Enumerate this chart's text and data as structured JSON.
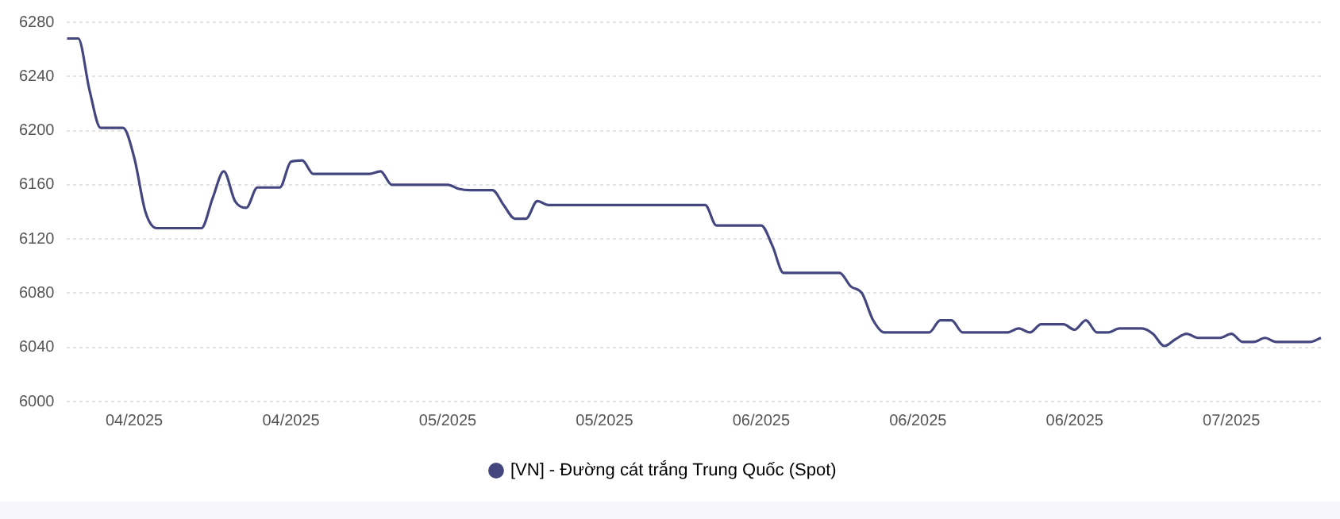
{
  "chart_data": {
    "type": "line",
    "categories": [
      null,
      null,
      null,
      null,
      null,
      null,
      "04/2025",
      null,
      null,
      null,
      null,
      null,
      null,
      null,
      null,
      null,
      null,
      null,
      null,
      null,
      "04/2025",
      null,
      null,
      null,
      null,
      null,
      null,
      null,
      null,
      null,
      null,
      null,
      null,
      null,
      "05/2025",
      null,
      null,
      null,
      null,
      null,
      null,
      null,
      null,
      null,
      null,
      null,
      null,
      null,
      "05/2025",
      null,
      null,
      null,
      null,
      null,
      null,
      null,
      null,
      null,
      null,
      null,
      null,
      null,
      "06/2025",
      null,
      null,
      null,
      null,
      null,
      null,
      null,
      null,
      null,
      null,
      null,
      null,
      null,
      "06/2025",
      null,
      null,
      null,
      null,
      null,
      null,
      null,
      null,
      null,
      null,
      null,
      null,
      null,
      "06/2025",
      null,
      null,
      null,
      null,
      null,
      null,
      null,
      null,
      null,
      null,
      null,
      null,
      null,
      "07/2025",
      null,
      null,
      null,
      null,
      null,
      null,
      null,
      null
    ],
    "series": [
      {
        "name": "[VN] - Đường cát trắng Trung Quốc (Spot)",
        "color": "#44467f",
        "values": [
          6268,
          6268,
          6230,
          6202,
          6202,
          6202,
          6180,
          6140,
          6128,
          6128,
          6128,
          6128,
          6128,
          6150,
          6170,
          6148,
          6143,
          6158,
          6158,
          6158,
          6177,
          6178,
          6168,
          6168,
          6168,
          6168,
          6168,
          6168,
          6170,
          6160,
          6160,
          6160,
          6160,
          6160,
          6160,
          6157,
          6156,
          6156,
          6156,
          6145,
          6135,
          6135,
          6148,
          6145,
          6145,
          6145,
          6145,
          6145,
          6145,
          6145,
          6145,
          6145,
          6145,
          6145,
          6145,
          6145,
          6145,
          6145,
          6130,
          6130,
          6130,
          6130,
          6130,
          6115,
          6095,
          6095,
          6095,
          6095,
          6095,
          6095,
          6085,
          6080,
          6060,
          6051,
          6051,
          6051,
          6051,
          6051,
          6060,
          6060,
          6051,
          6051,
          6051,
          6051,
          6051,
          6054,
          6051,
          6057,
          6057,
          6057,
          6053,
          6060,
          6051,
          6051,
          6054,
          6054,
          6054,
          6050,
          6041,
          6046,
          6050,
          6047,
          6047,
          6047,
          6050,
          6044,
          6044,
          6047,
          6044,
          6044,
          6044,
          6044,
          6047
        ]
      }
    ],
    "ylim": [
      6000,
      6280
    ],
    "yticks": [
      6000,
      6040,
      6080,
      6120,
      6160,
      6200,
      6240,
      6280
    ],
    "grid": "y",
    "legend": "bottom",
    "marker": "none",
    "line_style": "solid"
  }
}
